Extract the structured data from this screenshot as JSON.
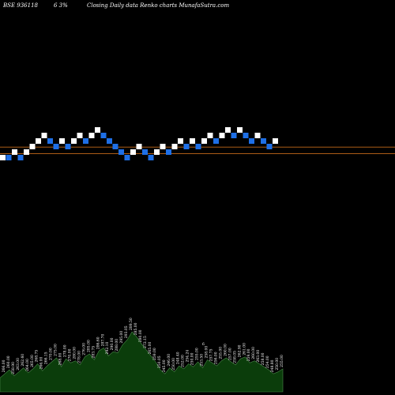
{
  "header": {
    "symbol": "BSE 936118",
    "change": "6  3%",
    "description": "Closing Daily data  Renko  charts MunafaSutra.com"
  },
  "colors": {
    "background": "#000000",
    "up_brick": "#ffffff",
    "down_brick": "#1e6fe6",
    "reference_line": "#c46a1a",
    "volume_fill": "#0b3d0b",
    "volume_stroke": "#4a8a4a"
  },
  "chart_data": {
    "type": "renko",
    "bricks": [
      {
        "level": 0,
        "dir": "up"
      },
      {
        "level": 0,
        "dir": "down"
      },
      {
        "level": 1,
        "dir": "up"
      },
      {
        "level": 0,
        "dir": "down"
      },
      {
        "level": 1,
        "dir": "up"
      },
      {
        "level": 2,
        "dir": "up"
      },
      {
        "level": 3,
        "dir": "up"
      },
      {
        "level": 4,
        "dir": "up"
      },
      {
        "level": 3,
        "dir": "down"
      },
      {
        "level": 2,
        "dir": "down"
      },
      {
        "level": 3,
        "dir": "up"
      },
      {
        "level": 2,
        "dir": "down"
      },
      {
        "level": 3,
        "dir": "up"
      },
      {
        "level": 4,
        "dir": "up"
      },
      {
        "level": 3,
        "dir": "down"
      },
      {
        "level": 4,
        "dir": "up"
      },
      {
        "level": 5,
        "dir": "up"
      },
      {
        "level": 4,
        "dir": "down"
      },
      {
        "level": 3,
        "dir": "down"
      },
      {
        "level": 2,
        "dir": "down"
      },
      {
        "level": 1,
        "dir": "down"
      },
      {
        "level": 0,
        "dir": "down"
      },
      {
        "level": 1,
        "dir": "up"
      },
      {
        "level": 2,
        "dir": "up"
      },
      {
        "level": 1,
        "dir": "down"
      },
      {
        "level": 0,
        "dir": "down"
      },
      {
        "level": 1,
        "dir": "up"
      },
      {
        "level": 2,
        "dir": "up"
      },
      {
        "level": 1,
        "dir": "down"
      },
      {
        "level": 2,
        "dir": "up"
      },
      {
        "level": 3,
        "dir": "up"
      },
      {
        "level": 2,
        "dir": "down"
      },
      {
        "level": 3,
        "dir": "up"
      },
      {
        "level": 2,
        "dir": "down"
      },
      {
        "level": 3,
        "dir": "up"
      },
      {
        "level": 4,
        "dir": "up"
      },
      {
        "level": 3,
        "dir": "down"
      },
      {
        "level": 4,
        "dir": "up"
      },
      {
        "level": 5,
        "dir": "up"
      },
      {
        "level": 4,
        "dir": "down"
      },
      {
        "level": 5,
        "dir": "up"
      },
      {
        "level": 4,
        "dir": "down"
      },
      {
        "level": 3,
        "dir": "down"
      },
      {
        "level": 4,
        "dir": "up"
      },
      {
        "level": 3,
        "dir": "down"
      },
      {
        "level": 2,
        "dir": "down"
      },
      {
        "level": 3,
        "dir": "up"
      }
    ],
    "reference_lines": [
      2.4,
      1.2
    ],
    "volume_labels": [
      "261.25",
      "266.00",
      "260.00",
      "258.90",
      "263.00",
      "262.60",
      "264.00",
      "265.00",
      "268.75",
      "266.00",
      "266.15",
      "270.00",
      "275.00",
      "268.00",
      "278.00",
      "270.00",
      "280.00",
      "278.00",
      "276.00",
      "285.00",
      "283.75",
      "286.60",
      "287.70",
      "292.10",
      "290.00",
      "288.00",
      "295.00",
      "293.05",
      "289.50",
      "285.00",
      "280.00",
      "272.15",
      "265.00",
      "259.00",
      "250.05",
      "245.00",
      "246.00",
      "250.00",
      "248.40",
      "252.00",
      "254.24",
      "250.00",
      "255.00",
      "253.50",
      "258.00",
      "257.75",
      "256.00",
      "255.00",
      "260.00",
      "257.00",
      "258.05",
      "262.90",
      "261.00",
      "259.00",
      "260.00",
      "263.00",
      "258.00",
      "254.00",
      "248.80",
      "250.00",
      "255.00"
    ],
    "volume_marker": "6",
    "volume": [
      14,
      18,
      22,
      16,
      20,
      24,
      19,
      23,
      28,
      21,
      26,
      30,
      34,
      25,
      33,
      29,
      31,
      27,
      35,
      38,
      32,
      41,
      44,
      36,
      40,
      39,
      47,
      52,
      60,
      55,
      48,
      42,
      36,
      30,
      22,
      18,
      24,
      20,
      26,
      23,
      28,
      25,
      30,
      24,
      32,
      29,
      26,
      31,
      34,
      30,
      27,
      33,
      35,
      29,
      31,
      28,
      25,
      22,
      18,
      20,
      23
    ]
  }
}
